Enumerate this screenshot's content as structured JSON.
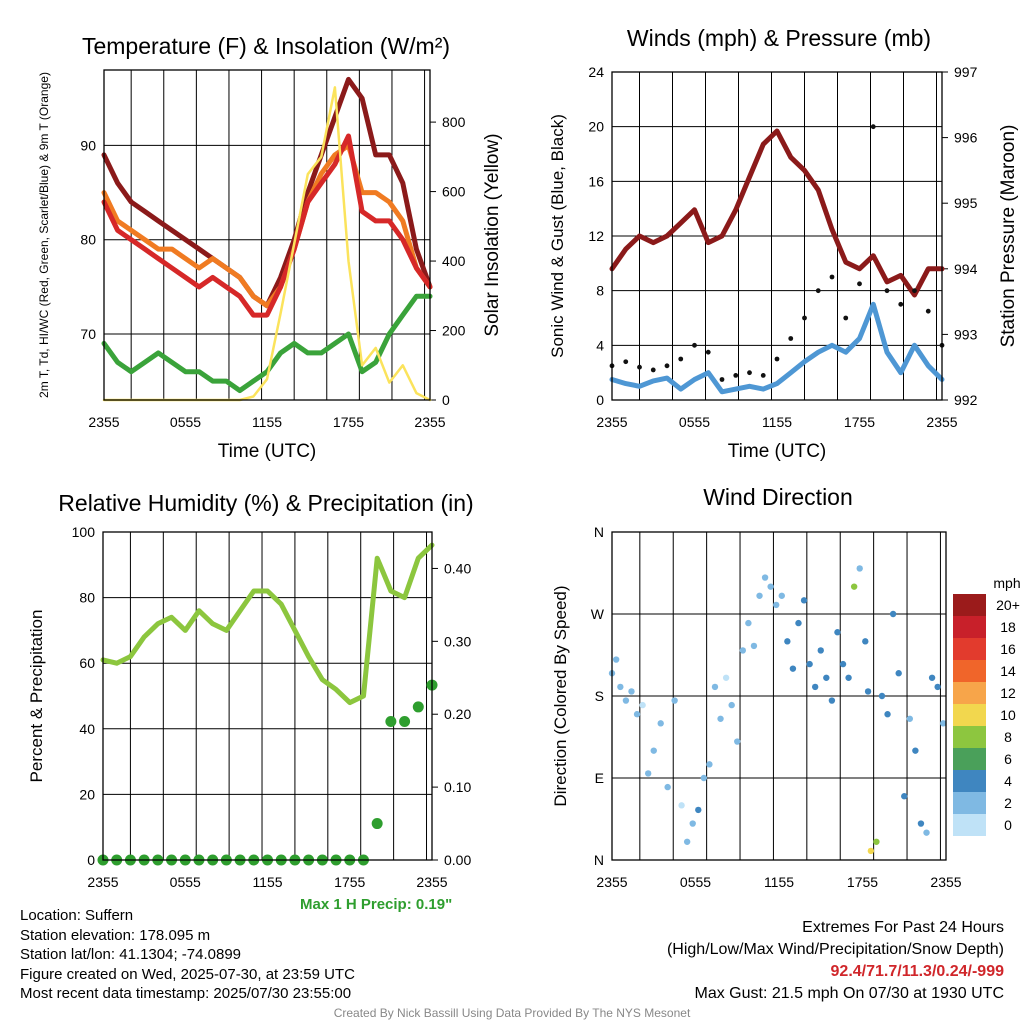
{
  "chart_data": [
    {
      "type": "line",
      "title": "Temperature (F) & Insolation (W/m²)",
      "xlabel": "Time (UTC)",
      "ylabel": "2m T, Td, HI/WC (Red, Green, Scarlet/Blue) & 9m T (Orange)",
      "y2label": "Solar Insolation (Yellow)",
      "xticks": [
        "2355",
        "0555",
        "1155",
        "1755",
        "2355"
      ],
      "ylim": [
        63,
        98
      ],
      "yticks": [
        70,
        80,
        90
      ],
      "y2lim": [
        0,
        950
      ],
      "y2ticks": [
        0,
        200,
        400,
        600,
        800
      ],
      "x_hours": [
        0,
        1,
        2,
        3,
        4,
        5,
        6,
        7,
        8,
        9,
        10,
        11,
        12,
        13,
        14,
        15,
        16,
        17,
        18,
        19,
        20,
        21,
        22,
        23,
        24
      ],
      "series": [
        {
          "color": "#8b1a1a",
          "axis": "y",
          "values": [
            89,
            86,
            84,
            83,
            82,
            81,
            80,
            79,
            78,
            77,
            76,
            74,
            73,
            76,
            80,
            85,
            89,
            93,
            97,
            95,
            89,
            89,
            86,
            79,
            75
          ]
        },
        {
          "color": "#f07b22",
          "axis": "y",
          "values": [
            85,
            82,
            81,
            80,
            79,
            79,
            78,
            77,
            78,
            77,
            76,
            74,
            73,
            75,
            79,
            84,
            87,
            89,
            90,
            85,
            85,
            84,
            82,
            77,
            75
          ]
        },
        {
          "color": "#d62828",
          "axis": "y",
          "values": [
            84,
            81,
            80,
            79,
            78,
            77,
            76,
            75,
            76,
            75,
            74,
            72,
            72,
            75,
            79,
            84,
            86,
            88,
            91,
            83,
            82,
            82,
            80,
            77,
            75
          ]
        },
        {
          "color": "#3aa33a",
          "axis": "y",
          "values": [
            69,
            67,
            66,
            67,
            68,
            67,
            66,
            66,
            65,
            65,
            64,
            65,
            66,
            68,
            69,
            68,
            68,
            69,
            70,
            66,
            67,
            70,
            72,
            74,
            74
          ]
        },
        {
          "color": "#fbe35c",
          "axis": "y2",
          "values": [
            0,
            0,
            0,
            0,
            0,
            0,
            0,
            0,
            0,
            0,
            0,
            10,
            60,
            250,
            450,
            650,
            700,
            900,
            400,
            100,
            150,
            50,
            100,
            20,
            0
          ]
        }
      ]
    },
    {
      "type": "line",
      "title": "Winds (mph) & Pressure (mb)",
      "xlabel": "Time (UTC)",
      "ylabel": "Sonic Wind & Gust (Blue, Black)",
      "y2label": "Station Pressure (Maroon)",
      "xticks": [
        "2355",
        "0555",
        "1155",
        "1755",
        "2355"
      ],
      "ylim": [
        0,
        24
      ],
      "yticks": [
        0,
        4,
        8,
        12,
        16,
        20,
        24
      ],
      "y2lim": [
        992,
        997
      ],
      "y2ticks": [
        992,
        993,
        994,
        995,
        996,
        997
      ],
      "x_hours": [
        0,
        1,
        2,
        3,
        4,
        5,
        6,
        7,
        8,
        9,
        10,
        11,
        12,
        13,
        14,
        15,
        16,
        17,
        18,
        19,
        20,
        21,
        22,
        23,
        24
      ],
      "series": [
        {
          "color": "#8b1a1a",
          "axis": "y2",
          "values": [
            994.0,
            994.3,
            994.5,
            994.4,
            994.5,
            994.7,
            994.9,
            994.4,
            994.5,
            994.9,
            995.4,
            995.9,
            996.1,
            995.7,
            995.5,
            995.2,
            994.6,
            994.1,
            994.0,
            994.2,
            993.8,
            993.9,
            993.6,
            994.0,
            994.0
          ]
        },
        {
          "color": "#4e97d4",
          "axis": "y",
          "values": [
            1.5,
            1.2,
            1.0,
            1.4,
            1.6,
            0.8,
            1.5,
            2.0,
            0.6,
            0.8,
            1.0,
            0.8,
            1.2,
            2.0,
            2.8,
            3.5,
            4.0,
            3.5,
            4.5,
            7.0,
            3.5,
            2.0,
            4.0,
            2.5,
            1.5
          ]
        },
        {
          "color": "#111111",
          "axis": "y",
          "kind": "scatter",
          "values": [
            2.5,
            2.8,
            2.4,
            2.2,
            2.5,
            3.0,
            4.0,
            3.5,
            1.5,
            1.8,
            2.0,
            1.8,
            3.0,
            4.5,
            6.0,
            8.0,
            9.0,
            6.0,
            8.5,
            20.0,
            8.0,
            7.0,
            8.0,
            6.5,
            4.0
          ]
        }
      ]
    },
    {
      "type": "line",
      "title": "Relative Humidity (%) & Precipitation (in)",
      "ylabel": "Percent & Precipitation",
      "xticks": [
        "2355",
        "0555",
        "1155",
        "1755",
        "2355"
      ],
      "ylim": [
        0,
        100
      ],
      "yticks": [
        0,
        20,
        40,
        60,
        80,
        100
      ],
      "y2lim": [
        0,
        0.45
      ],
      "y2ticks": [
        "0.00",
        "0.10",
        "0.20",
        "0.30",
        "0.40"
      ],
      "x_hours": [
        0,
        1,
        2,
        3,
        4,
        5,
        6,
        7,
        8,
        9,
        10,
        11,
        12,
        13,
        14,
        15,
        16,
        17,
        18,
        19,
        20,
        21,
        22,
        23,
        24
      ],
      "series": [
        {
          "color": "#8cc63e",
          "axis": "y",
          "values": [
            61,
            60,
            62,
            68,
            72,
            74,
            70,
            76,
            72,
            70,
            76,
            82,
            82,
            78,
            70,
            62,
            55,
            52,
            48,
            50,
            92,
            82,
            80,
            92,
            96
          ]
        },
        {
          "color": "#2e9e2e",
          "axis": "y2",
          "kind": "scatter",
          "values": [
            0,
            0,
            0,
            0,
            0,
            0,
            0,
            0,
            0,
            0,
            0,
            0,
            0,
            0,
            0,
            0,
            0,
            0,
            0,
            0,
            0.05,
            0.19,
            0.19,
            0.21,
            0.24
          ]
        }
      ],
      "annotation": "Max 1 H Precip: 0.19\""
    },
    {
      "type": "scatter",
      "title": "Wind Direction",
      "ylabel": "Direction (Colored By Speed)",
      "xticks": [
        "2355",
        "0555",
        "1155",
        "1755",
        "2355"
      ],
      "ylim": [
        0,
        360
      ],
      "yticks": [
        "N",
        "E",
        "S",
        "W",
        "N"
      ],
      "colorbar_title": "mph",
      "colorbar_labels": [
        "20+",
        "18",
        "16",
        "14",
        "12",
        "10",
        "8",
        "6",
        "4",
        "2",
        "0"
      ],
      "colorbar_colors": [
        "#9b1b1b",
        "#c8202a",
        "#e23b2d",
        "#f0652a",
        "#f7a54a",
        "#f2d74e",
        "#8dc63f",
        "#4aa05a",
        "#3f86c0",
        "#7fb9e3",
        "#bfe2f7"
      ],
      "points_hour": [
        0,
        0.3,
        0.6,
        1,
        1.4,
        1.8,
        2.2,
        2.6,
        3,
        3.5,
        4,
        4.5,
        5,
        5.4,
        5.8,
        6.2,
        6.6,
        7,
        7.4,
        7.8,
        8.2,
        8.6,
        9,
        9.4,
        9.8,
        10.2,
        10.6,
        11,
        11.4,
        11.8,
        12.2,
        12.6,
        13,
        13.4,
        13.8,
        14.2,
        14.6,
        15,
        15.4,
        15.8,
        16.2,
        16.6,
        17,
        17.4,
        17.8,
        18.2,
        18.4,
        18.6,
        19,
        19.4,
        19.8,
        20.2,
        20.6,
        21,
        21.4,
        21.8,
        22.2,
        22.6,
        23,
        23.4,
        23.8
      ],
      "points_dir": [
        205,
        220,
        190,
        175,
        185,
        160,
        170,
        95,
        120,
        150,
        80,
        175,
        60,
        20,
        40,
        55,
        90,
        105,
        190,
        155,
        200,
        170,
        130,
        230,
        260,
        235,
        290,
        310,
        300,
        280,
        290,
        240,
        210,
        260,
        285,
        215,
        190,
        230,
        200,
        175,
        250,
        215,
        200,
        300,
        320,
        240,
        185,
        10,
        20,
        180,
        160,
        270,
        205,
        70,
        155,
        120,
        40,
        30,
        200,
        190,
        150
      ],
      "points_speed": [
        1,
        1,
        2,
        1,
        1,
        1,
        0,
        1,
        1,
        1,
        1,
        1,
        0,
        1,
        2,
        3,
        1,
        1,
        1,
        1,
        0,
        1,
        1,
        1,
        1,
        1,
        2,
        2,
        1,
        1,
        2,
        3,
        3,
        4,
        3,
        3,
        4,
        3,
        4,
        3,
        4,
        4,
        3,
        7,
        2,
        4,
        3,
        10,
        7,
        4,
        3,
        4,
        4,
        4,
        2,
        3,
        3,
        2,
        4,
        3,
        2
      ]
    }
  ],
  "info": {
    "location": "Location: Suffern",
    "elevation": "Station elevation: 178.095 m",
    "latlon": "Station lat/lon: 41.1304; -74.0899",
    "created": "Figure created on Wed, 2025-07-30, at 23:59 UTC",
    "recent": "Most recent data timestamp: 2025/07/30 23:55:00"
  },
  "extremes": {
    "line1": "Extremes For Past 24 Hours",
    "line2": "(High/Low/Max Wind/Precipitation/Snow Depth)",
    "values": "92.4/71.7/11.3/0.24/-999",
    "gust": "Max Gust: 21.5 mph On 07/30 at 1930 UTC"
  },
  "credit": "Created By Nick Bassill Using Data Provided By The NYS Mesonet"
}
